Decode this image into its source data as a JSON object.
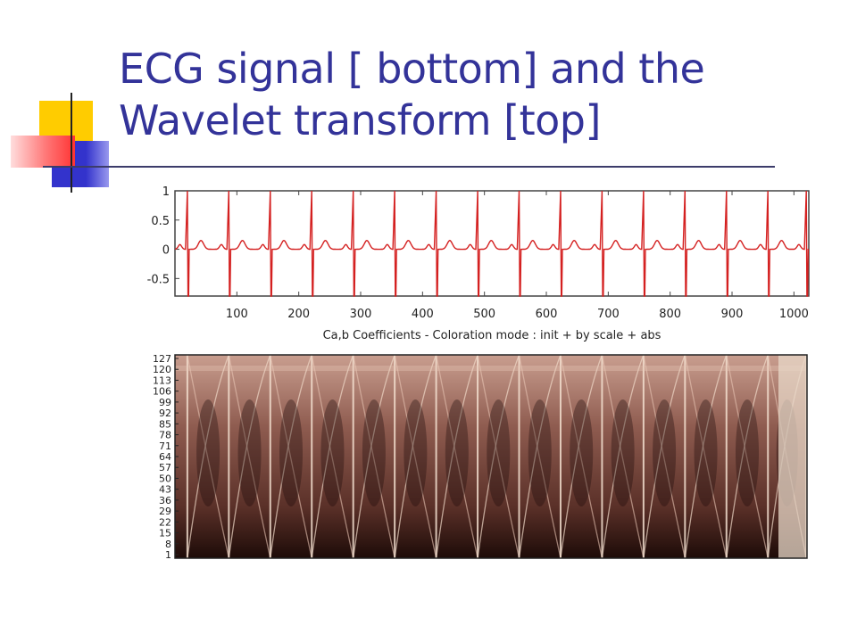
{
  "slide": {
    "title_line1": "ECG signal [ bottom] and the",
    "title_line2": "Wavelet transform [top]"
  },
  "colors": {
    "title": "#333399",
    "ecg_trace": "#d42020",
    "deco_yellow": "#ffcc00",
    "deco_red": "#ff5555",
    "deco_blue": "#3333cc"
  },
  "chart_data": [
    {
      "type": "line",
      "title": "",
      "xlabel": "",
      "ylabel": "",
      "ylim": [
        -0.8,
        1.0
      ],
      "xlim": [
        0,
        1024
      ],
      "y_ticks": [
        "1",
        "0.5",
        "0",
        "-0.5"
      ],
      "y_tick_values": [
        1,
        0.5,
        0,
        -0.5
      ],
      "x_ticks": [
        "100",
        "200",
        "300",
        "400",
        "500",
        "600",
        "700",
        "800",
        "900",
        "1000"
      ],
      "x_tick_values": [
        100,
        200,
        300,
        400,
        500,
        600,
        700,
        800,
        900,
        1000
      ],
      "series": [
        {
          "beat_positions": [
            20,
            87,
            154,
            221,
            288,
            355,
            422,
            489,
            556,
            623,
            690,
            757,
            824,
            891,
            958,
            1020
          ],
          "r_peak": 1.0,
          "s_trough": -0.8,
          "t_wave": 0.15,
          "p_wave": 0.08
        }
      ]
    },
    {
      "type": "heatmap",
      "title": "Ca,b Coefficients  - Coloration mode : init + by scale + abs",
      "y_ticks": [
        "127",
        "120",
        "113",
        "106",
        "99",
        "92",
        "85",
        "78",
        "71",
        "64",
        "57",
        "50",
        "43",
        "36",
        "29",
        "22",
        "15",
        "8",
        "1"
      ],
      "colormap": [
        "#1a0808",
        "#5a2a22",
        "#9a6458",
        "#d8a89a",
        "#f4e0d0"
      ]
    }
  ]
}
